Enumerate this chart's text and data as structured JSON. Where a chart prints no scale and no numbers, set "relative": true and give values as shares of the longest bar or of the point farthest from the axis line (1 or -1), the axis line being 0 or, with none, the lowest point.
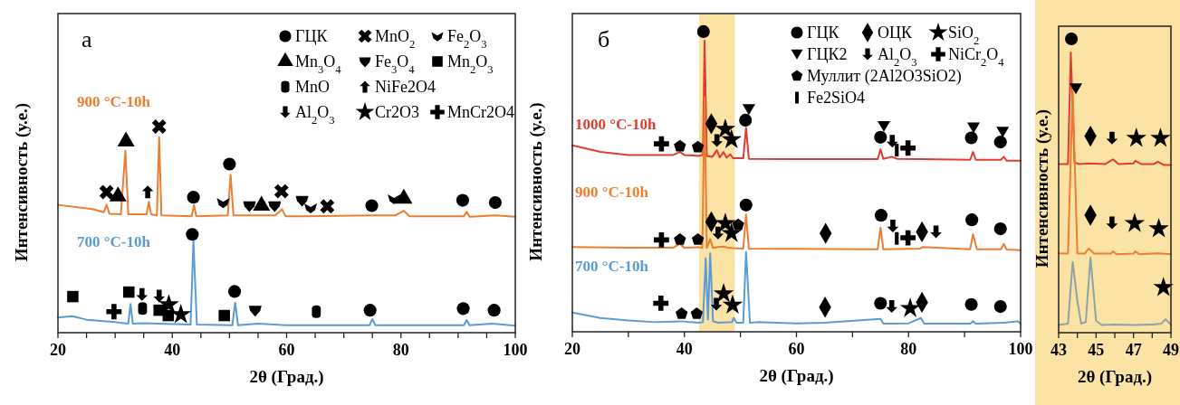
{
  "chart_data": [
    {
      "type": "line",
      "relative": true,
      "title": "а",
      "xlabel": "2θ (Град.)",
      "ylabel": "Интенсивность (у.е.)",
      "xlim": [
        20,
        100
      ],
      "xticks": [
        20,
        {
          "value": 25,
          "label": null
        },
        {
          "value": 30,
          "label": null
        },
        {
          "value": 35,
          "label": null
        },
        40,
        {
          "value": 45,
          "label": null
        },
        {
          "value": 50,
          "label": null
        },
        {
          "value": 55,
          "label": null
        },
        60,
        {
          "value": 65,
          "label": null
        },
        {
          "value": 70,
          "label": null
        },
        {
          "value": 75,
          "label": null
        },
        80,
        {
          "value": 85,
          "label": null
        },
        {
          "value": 90,
          "label": null
        },
        {
          "value": 95,
          "label": null
        },
        100
      ],
      "legend": "top right",
      "series": [
        {
          "name": "900 °C-10h",
          "color": "#ed7d31",
          "x": [
            20,
            26,
            28,
            28.5,
            29,
            31,
            31.8,
            32.3,
            35.5,
            35.9,
            36.3,
            37.3,
            37.7,
            38.1,
            43.4,
            43.8,
            44.2,
            49.7,
            50.2,
            50.7,
            58,
            59.2,
            59.8,
            63,
            75,
            79,
            80.5,
            81.5,
            91,
            91.5,
            92,
            96.5,
            100
          ],
          "values": [
            0.62,
            0.6,
            0.584,
            0.62,
            0.577,
            0.574,
            0.883,
            0.574,
            0.574,
            0.635,
            0.574,
            0.569,
            0.949,
            0.569,
            0.565,
            0.62,
            0.565,
            0.569,
            0.766,
            0.569,
            0.569,
            0.599,
            0.565,
            0.565,
            0.569,
            0.569,
            0.591,
            0.565,
            0.565,
            0.587,
            0.562,
            0.569,
            0.562
          ]
        },
        {
          "name": "700 °C-10h",
          "color": "#5b9bd5",
          "x": [
            20,
            22.5,
            25,
            30,
            32.3,
            32.7,
            33.1,
            35,
            37.5,
            43.2,
            43.7,
            44.3,
            50.5,
            51,
            51.5,
            55,
            60,
            74.5,
            75,
            75.5,
            91,
            91.5,
            92,
            96,
            100
          ],
          "values": [
            0.073,
            0.08,
            0.063,
            0.051,
            0.044,
            0.139,
            0.044,
            0.046,
            0.044,
            0.039,
            0.445,
            0.039,
            0.036,
            0.146,
            0.036,
            0.044,
            0.036,
            0.036,
            0.066,
            0.036,
            0.036,
            0.061,
            0.036,
            0.044,
            0.034
          ]
        },
        {
          "type": "scatter",
          "name": "ГЦК",
          "color": "#000000",
          "marker": "circle",
          "x": [
            43.7,
            50,
            74.9,
            90.8,
            96.5,
            43.5,
            50.9,
            74.6,
            90.9,
            96.3
          ],
          "values": [
            0.657,
            0.818,
            0.616,
            0.642,
            0.631,
            0.477,
            0.2,
            0.109,
            0.117,
            0.109
          ]
        },
        {
          "type": "scatter",
          "name": "MnO$_{2}$",
          "color": "#000000",
          "marker": "cross",
          "x": [
            28.5,
            37.7,
            59.1,
            67.1
          ],
          "values": [
            0.682,
            1,
            0.686,
            0.613
          ]
        },
        {
          "type": "scatter",
          "name": "Fe$_{2}$O$_{3}$",
          "color": "#000000",
          "x": [
            48.9,
            64.2,
            78.8
          ],
          "values": [
            0.632,
            0.606,
            0.65
          ]
        },
        {
          "type": "scatter",
          "name": "Mn$_{3}$O$_{4}$",
          "color": "#000000",
          "marker": "triangle",
          "x": [
            30.5,
            31.9,
            55.6,
            80.5
          ],
          "values": [
            0.661,
            0.927,
            0.616,
            0.65
          ]
        },
        {
          "type": "scatter",
          "name": "Fe$_{3}$O$_{4}$",
          "color": "#000000",
          "x": [
            53.5,
            57.9,
            62.7,
            54.5
          ],
          "values": [
            0.616,
            0.616,
            0.642,
            0.109
          ]
        },
        {
          "type": "scatter",
          "name": "Mn$_{2}$O$_{3}$",
          "color": "#000000",
          "marker": "square",
          "x": [
            22.6,
            32.4,
            37.7,
            39.3,
            49.1
          ],
          "values": [
            0.175,
            0.197,
            0.109,
            0.083,
            0.083
          ]
        },
        {
          "type": "scatter",
          "name": "MnO",
          "color": "#000000",
          "x": [
            34.8,
            65.2
          ],
          "values": [
            0.117,
            0.102
          ]
        },
        {
          "type": "scatter",
          "name": "NiFe2O4",
          "color": "#000000",
          "x": [
            35.7
          ],
          "values": [
            0.683
          ]
        },
        {
          "type": "scatter",
          "name": "Al$_{2}$O$_{3}$",
          "color": "#000000",
          "x": [
            34.7,
            37.7
          ],
          "values": [
            0.185,
            0.178
          ]
        },
        {
          "type": "scatter",
          "name": "Cr2O3",
          "color": "#000000",
          "marker": "star",
          "x": [
            39.4,
            41.5
          ],
          "values": [
            0.136,
            0.088
          ]
        },
        {
          "type": "scatter",
          "name": "MnCr2O4",
          "color": "#000000",
          "marker": "plus",
          "x": [
            29.8
          ],
          "values": [
            0.102
          ]
        }
      ]
    },
    {
      "type": "line",
      "relative": true,
      "title": "б",
      "xlabel": "2θ (Град.)",
      "ylabel": "Интенсивность (у.е.)",
      "xlim": [
        20,
        100
      ],
      "xticks": [
        20,
        {
          "value": 30,
          "label": null
        },
        40,
        {
          "value": 50,
          "label": null
        },
        60,
        {
          "value": 70,
          "label": null
        },
        80,
        {
          "value": 90,
          "label": null
        },
        100
      ],
      "legend": "top right",
      "bands": [
        {
          "axis": "x",
          "from": 42.6,
          "to": 49,
          "color": "#fbe3a6"
        }
      ],
      "series": [
        {
          "name": "1000 °C-10h",
          "color": "#e03c31",
          "x": [
            20,
            25,
            30,
            38,
            39.2,
            40,
            42.5,
            43.3,
            43.6,
            44,
            45,
            45.8,
            46.3,
            47,
            47.5,
            48.2,
            48.7,
            50.5,
            51,
            51.5,
            60,
            74.5,
            75,
            75.5,
            77,
            78,
            91,
            91.5,
            92,
            96.5,
            97,
            97.5,
            100
          ],
          "values": [
            0.621,
            0.599,
            0.589,
            0.589,
            0.599,
            0.589,
            0.586,
            0.589,
            0.97,
            0.586,
            0.583,
            0.605,
            0.581,
            0.599,
            0.58,
            0.591,
            0.578,
            0.578,
            0.68,
            0.576,
            0.575,
            0.575,
            0.608,
            0.576,
            0.583,
            0.576,
            0.573,
            0.599,
            0.573,
            0.573,
            0.583,
            0.57,
            0.57
          ]
        },
        {
          "name": "900 °C-10h",
          "color": "#ed7d31",
          "x": [
            20,
            30,
            38,
            39.2,
            40,
            42.5,
            43.2,
            43.6,
            44,
            44.6,
            45.1,
            46,
            47,
            48,
            50.5,
            51,
            51.5,
            74.5,
            75,
            75.5,
            82,
            82.5,
            91,
            91.5,
            92.2,
            96.5,
            97,
            97.5,
            100
          ],
          "values": [
            0.282,
            0.28,
            0.28,
            0.293,
            0.279,
            0.282,
            0.279,
            0.782,
            0.279,
            0.309,
            0.279,
            0.282,
            0.284,
            0.279,
            0.277,
            0.39,
            0.277,
            0.275,
            0.347,
            0.275,
            0.277,
            0.282,
            0.275,
            0.325,
            0.275,
            0.275,
            0.293,
            0.274,
            0.272
          ]
        },
        {
          "name": "700 °C-10h",
          "color": "#5b9bd5",
          "x": [
            20,
            25,
            30,
            35,
            39.5,
            42.5,
            43.3,
            43.8,
            44.2,
            44.6,
            45.1,
            46,
            48.5,
            48.8,
            49.3,
            50.5,
            51,
            51.7,
            53,
            60,
            65,
            75,
            75.5,
            80,
            82.2,
            82.8,
            91,
            91.5,
            92,
            97,
            99.5,
            100
          ],
          "values": [
            0.064,
            0.046,
            0.038,
            0.032,
            0.035,
            0.03,
            0.032,
            0.245,
            0.041,
            0.261,
            0.035,
            0.03,
            0.032,
            0.046,
            0.03,
            0.03,
            0.266,
            0.03,
            0.032,
            0.028,
            0.03,
            0.043,
            0.027,
            0.028,
            0.046,
            0.027,
            0.027,
            0.035,
            0.027,
            0.03,
            0.035,
            0.027
          ]
        },
        {
          "type": "scatter",
          "name": "ГЦК",
          "color": "#000000",
          "marker": "circle",
          "x": [
            43.4,
            50.9,
            75,
            91.2,
            96.4,
            51,
            75.1,
            91.3,
            96.4,
            75,
            91.2,
            96.4
          ],
          "values": [
            1,
            0.705,
            0.648,
            0.646,
            0.632,
            0.422,
            0.388,
            0.373,
            0.343,
            0.095,
            0.091,
            0.084
          ]
        },
        {
          "type": "scatter",
          "name": "ОЦК",
          "color": "#000000",
          "marker": "diamond",
          "x": [
            44.8,
            44.8,
            65.2,
            82.4,
            65.1,
            82.4
          ],
          "values": [
            0.693,
            0.366,
            0.328,
            0.333,
            0.082,
            0.098
          ]
        },
        {
          "type": "scatter",
          "name": "SiO$_{2}$",
          "color": "#000000",
          "marker": "star",
          "x": [
            47.3,
            48.4,
            47.3,
            48.4,
            47,
            48.6,
            80.3
          ],
          "values": [
            0.675,
            0.64,
            0.361,
            0.328,
            0.127,
            0.089,
            0.078
          ]
        },
        {
          "type": "scatter",
          "name": "ГЦК2",
          "color": "#000000",
          "marker": "triangle-down",
          "x": [
            51.5,
            75.6,
            91.6,
            96.8
          ],
          "values": [
            0.741,
            0.685,
            0.68,
            0.666
          ]
        },
        {
          "type": "scatter",
          "name": "Al$_{2}$O$_{3}$",
          "color": "#000000",
          "x": [
            45.8,
            77.1,
            46,
            77.2,
            84.9,
            45.7,
            77
          ],
          "values": [
            0.637,
            0.635,
            0.329,
            0.352,
            0.333,
            0.092,
            0.084
          ]
        },
        {
          "type": "scatter",
          "name": "NiCr$_{2}$O$_{4}$",
          "color": "#000000",
          "marker": "plus",
          "x": [
            35.9,
            79.9,
            35.9,
            79.9,
            35.8
          ],
          "values": [
            0.626,
            0.612,
            0.306,
            0.313,
            0.095
          ]
        },
        {
          "type": "scatter",
          "name": "Муллит (2Al2O3SiO2)",
          "color": "#000000",
          "x": [
            39.2,
            42.4,
            39.2,
            42.4,
            49.6,
            39.5,
            42.2
          ],
          "values": [
            0.618,
            0.615,
            0.307,
            0.307,
            0.356,
            0.06,
            0.06
          ]
        },
        {
          "type": "scatter",
          "name": "Fe2SiO4",
          "color": "#000000",
          "x": [
            77.9,
            77.9
          ],
          "values": [
            0.605,
            0.311
          ]
        }
      ]
    },
    {
      "type": "line",
      "relative": true,
      "xlabel": "2θ (Град.)",
      "ylabel": "Интенсивность (у.е.)",
      "xlim": [
        43,
        49
      ],
      "xticks": [
        43,
        {
          "value": 44,
          "label": null
        },
        45,
        {
          "value": 46,
          "label": null
        },
        47,
        {
          "value": 48,
          "label": null
        },
        49
      ],
      "bands": [
        {
          "axis": "x",
          "from": 43,
          "to": 49,
          "color": "#fbe3a6"
        }
      ],
      "series": [
        {
          "color": "#e03c31",
          "x": [
            43,
            43.5,
            43.65,
            43.85,
            44.1,
            44.6,
            45.5,
            45.9,
            46.2,
            47,
            47.1,
            47.4,
            48.1,
            48.3,
            48.6,
            49
          ],
          "values": [
            0.574,
            0.574,
            0.954,
            0.579,
            0.574,
            0.576,
            0.574,
            0.59,
            0.574,
            0.576,
            0.585,
            0.574,
            0.574,
            0.582,
            0.571,
            0.571
          ]
        },
        {
          "color": "#ed7d31",
          "x": [
            43,
            43.5,
            43.75,
            44,
            44.4,
            44.6,
            44.9,
            45.8,
            45.9,
            46.1,
            47,
            47.1,
            47.3,
            48.3,
            49
          ],
          "values": [
            0.27,
            0.269,
            0.826,
            0.27,
            0.269,
            0.287,
            0.269,
            0.269,
            0.277,
            0.267,
            0.269,
            0.277,
            0.267,
            0.27,
            0.267
          ]
        },
        {
          "color": "#8ea3a6",
          "x": [
            43,
            43.5,
            43.75,
            44,
            44.2,
            44.45,
            44.7,
            45,
            45.3,
            46,
            47,
            48,
            48.5,
            48.7,
            49
          ],
          "values": [
            0.026,
            0.031,
            0.241,
            0.108,
            0.031,
            0.036,
            0.256,
            0.041,
            0.026,
            0.028,
            0.026,
            0.028,
            0.031,
            0.046,
            0.028
          ]
        },
        {
          "type": "scatter",
          "color": "#000000",
          "marker": "circle",
          "x": [
            43.68
          ],
          "values": [
            1
          ]
        },
        {
          "type": "scatter",
          "color": "#000000",
          "marker": "triangle-down",
          "x": [
            43.92
          ],
          "values": [
            0.831
          ]
        },
        {
          "type": "scatter",
          "color": "#000000",
          "marker": "diamond",
          "x": [
            44.7,
            44.7
          ],
          "values": [
            0.669,
            0.4
          ]
        },
        {
          "type": "scatter",
          "color": "#000000",
          "x": [
            45.85,
            45.85
          ],
          "values": [
            0.662,
            0.374
          ]
        },
        {
          "type": "scatter",
          "color": "#000000",
          "marker": "star",
          "x": [
            47.15,
            48.44,
            47.06,
            48.35,
            48.6
          ],
          "values": [
            0.662,
            0.662,
            0.372,
            0.354,
            0.154
          ]
        }
      ]
    }
  ]
}
